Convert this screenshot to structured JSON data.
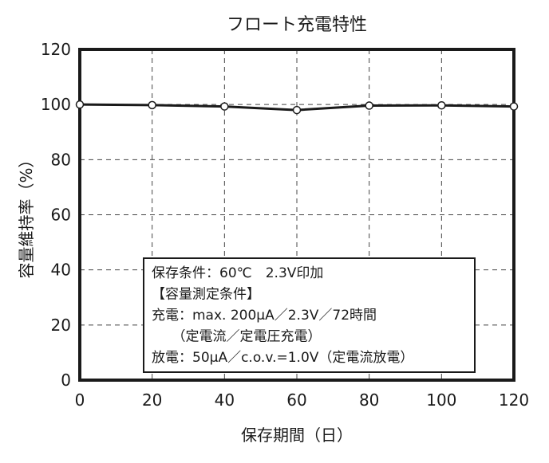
{
  "chart_data": {
    "type": "line",
    "title": "フロート充電特性",
    "xlabel": "保存期間（日）",
    "ylabel": "容量維持率（%）",
    "xlim": [
      0,
      120
    ],
    "ylim": [
      0,
      120
    ],
    "x_ticks": [
      0,
      20,
      40,
      60,
      80,
      100,
      120
    ],
    "y_ticks": [
      0,
      20,
      40,
      60,
      80,
      100,
      120
    ],
    "grid": true,
    "series": [
      {
        "x": [
          0,
          20,
          40,
          60,
          80,
          100,
          120
        ],
        "values": [
          100,
          99.8,
          99.3,
          98,
          99.6,
          99.7,
          99.3
        ]
      }
    ],
    "annotation": {
      "lines": [
        "保存条件：60℃　2.3V印加",
        "【容量測定条件】",
        "充電：max. 200μA／2.3V／72時間",
        "　　（定電流／定電圧充電）",
        "放電：50μA／c.o.v.=1.0V（定電流放電）"
      ]
    },
    "colors": {
      "line": "#1a1a1a",
      "marker_fill": "#ffffff",
      "grid": "#444444"
    }
  }
}
